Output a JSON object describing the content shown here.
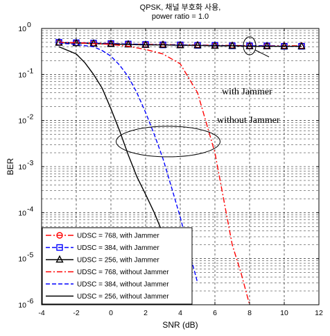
{
  "chart_data": {
    "type": "line",
    "title_line1": "QPSK, 채널 부호화 사용,",
    "title_line2": "power ratio = 1.0",
    "xlabel": "SNR (dB)",
    "ylabel": "BER",
    "xlim": [
      -4,
      12
    ],
    "ylim": [
      1e-06,
      1
    ],
    "yscale": "log",
    "grid": true,
    "x_ticks": [
      -4,
      -2,
      0,
      2,
      4,
      6,
      8,
      10,
      12
    ],
    "y_ticks": [
      {
        "value": 1e-06,
        "base": "10",
        "exp": "-6"
      },
      {
        "value": 1e-05,
        "base": "10",
        "exp": "-5"
      },
      {
        "value": 0.0001,
        "base": "10",
        "exp": "-4"
      },
      {
        "value": 0.001,
        "base": "10",
        "exp": "-3"
      },
      {
        "value": 0.01,
        "base": "10",
        "exp": "-2"
      },
      {
        "value": 0.1,
        "base": "10",
        "exp": "-1"
      },
      {
        "value": 1,
        "base": "10",
        "exp": "0"
      }
    ],
    "legend_position": "bottom-left",
    "series": [
      {
        "name": "UDSC = 768, with Jammer",
        "color": "#ff0000",
        "dash": "8,3,2,3",
        "marker": "circle",
        "x": [
          -3,
          -2,
          -1,
          0,
          1,
          2,
          3,
          4,
          5,
          6,
          7,
          8,
          9,
          10,
          11
        ],
        "y": [
          0.5,
          0.49,
          0.48,
          0.47,
          0.46,
          0.45,
          0.45,
          0.44,
          0.44,
          0.43,
          0.43,
          0.42,
          0.42,
          0.42,
          0.42
        ]
      },
      {
        "name": "UDSC = 384, with Jammer",
        "color": "#0000ff",
        "dash": "6,3",
        "marker": "square",
        "x": [
          -3,
          -2,
          -1,
          0,
          1,
          2,
          3,
          4,
          5,
          6,
          7,
          8,
          9,
          10,
          11
        ],
        "y": [
          0.5,
          0.49,
          0.48,
          0.47,
          0.46,
          0.45,
          0.44,
          0.44,
          0.43,
          0.43,
          0.42,
          0.42,
          0.42,
          0.41,
          0.41
        ]
      },
      {
        "name": "UDSC = 256, with Jammer",
        "color": "#000000",
        "dash": "",
        "marker": "triangle",
        "x": [
          -3,
          -2,
          -1,
          0,
          1,
          2,
          3,
          4,
          5,
          6,
          7,
          8,
          9,
          10,
          11
        ],
        "y": [
          0.49,
          0.48,
          0.47,
          0.46,
          0.45,
          0.44,
          0.44,
          0.43,
          0.43,
          0.42,
          0.42,
          0.41,
          0.41,
          0.41,
          0.41
        ]
      },
      {
        "name": "UDSC = 768, without Jammer",
        "color": "#ff0000",
        "dash": "8,3,2,3",
        "marker": "none",
        "x": [
          -3,
          -2,
          -1,
          0,
          1,
          2,
          3,
          4,
          5,
          6,
          6.5,
          7,
          7.5,
          8
        ],
        "y": [
          0.5,
          0.49,
          0.47,
          0.45,
          0.41,
          0.35,
          0.28,
          0.17,
          0.04,
          0.002,
          0.0002,
          2e-05,
          5e-06,
          1e-06
        ]
      },
      {
        "name": "UDSC = 384, without Jammer",
        "color": "#0000ff",
        "dash": "6,3",
        "marker": "none",
        "x": [
          -3,
          -2,
          -1,
          -0.5,
          0,
          0.5,
          1,
          1.5,
          2,
          2.5,
          3,
          3.5,
          4,
          4.5,
          5
        ],
        "y": [
          0.48,
          0.45,
          0.4,
          0.33,
          0.25,
          0.16,
          0.09,
          0.04,
          0.015,
          0.005,
          0.0015,
          0.00035,
          8e-05,
          1.5e-05,
          3e-06
        ]
      },
      {
        "name": "UDSC = 256, without Jammer",
        "color": "#000000",
        "dash": "",
        "marker": "none",
        "x": [
          -3,
          -2,
          -1.5,
          -1,
          -0.5,
          0,
          0.5,
          1,
          1.5,
          2,
          2.5,
          3,
          3.5,
          4
        ],
        "y": [
          0.4,
          0.28,
          0.18,
          0.1,
          0.05,
          0.018,
          0.006,
          0.0018,
          0.0006,
          0.00025,
          0.0001,
          3.5e-05,
          1.2e-05,
          4e-06
        ]
      }
    ],
    "annotations": [
      "with  Jammer",
      "without  Jammer"
    ]
  }
}
